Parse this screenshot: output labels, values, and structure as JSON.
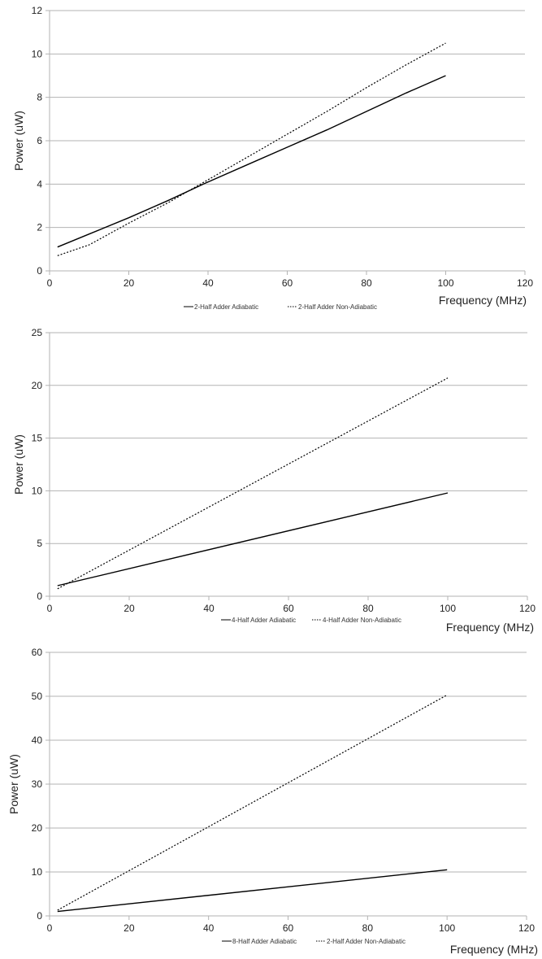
{
  "chart_data": [
    {
      "type": "line",
      "xlabel": "Frequency (MHz)",
      "ylabel": "Power (uW)",
      "xlim": [
        0,
        120
      ],
      "ylim": [
        0,
        12
      ],
      "x_ticks": [
        "0",
        "20",
        "40",
        "60",
        "80",
        "100",
        "120"
      ],
      "y_ticks": [
        "0",
        "2",
        "4",
        "6",
        "8",
        "10",
        "12"
      ],
      "grid": "horizontal",
      "legend": "bottom-center",
      "series": [
        {
          "name": "2-Half Adder Adiabatic",
          "style": "solid",
          "x": [
            2,
            10,
            20,
            30,
            40,
            50,
            60,
            70,
            80,
            90,
            100
          ],
          "y": [
            1.1,
            1.7,
            2.45,
            3.25,
            4.1,
            4.9,
            5.7,
            6.5,
            7.35,
            8.2,
            9.0
          ]
        },
        {
          "name": "2-Half Adder Non-Adiabatic",
          "style": "dotted",
          "x": [
            2,
            10,
            20,
            30,
            40,
            50,
            60,
            70,
            80,
            90,
            100
          ],
          "y": [
            0.7,
            1.2,
            2.2,
            3.15,
            4.2,
            5.25,
            6.3,
            7.35,
            8.45,
            9.5,
            10.5
          ]
        }
      ]
    },
    {
      "type": "line",
      "xlabel": "Frequency (MHz)",
      "ylabel": "Power (uW)",
      "xlim": [
        0,
        120
      ],
      "ylim": [
        0,
        25
      ],
      "x_ticks": [
        "0",
        "20",
        "40",
        "60",
        "80",
        "100",
        "120"
      ],
      "y_ticks": [
        "0",
        "5",
        "10",
        "15",
        "20",
        "25"
      ],
      "grid": "horizontal",
      "legend": "bottom-center",
      "series": [
        {
          "name": "4-Half Adder Adiabatic",
          "style": "solid",
          "x": [
            2,
            100
          ],
          "y": [
            1.0,
            9.8
          ]
        },
        {
          "name": "4-Half Adder Non-Adiabatic",
          "style": "dotted",
          "x": [
            2,
            100
          ],
          "y": [
            0.7,
            20.7
          ]
        }
      ]
    },
    {
      "type": "line",
      "xlabel": "Frequency (MHz)",
      "ylabel": "Power (uW)",
      "xlim": [
        0,
        120
      ],
      "ylim": [
        0,
        60
      ],
      "x_ticks": [
        "0",
        "20",
        "40",
        "60",
        "80",
        "100",
        "120"
      ],
      "y_ticks": [
        "0",
        "10",
        "20",
        "30",
        "40",
        "50",
        "60"
      ],
      "grid": "horizontal",
      "legend": "bottom-center",
      "series": [
        {
          "name": "8-Half Adder Adiabatic",
          "style": "solid",
          "x": [
            2,
            100
          ],
          "y": [
            1.0,
            10.5
          ]
        },
        {
          "name": "2-Half Adder Non-Adiabatic",
          "style": "dotted",
          "x": [
            2,
            100
          ],
          "y": [
            1.3,
            50.3
          ]
        }
      ]
    }
  ]
}
